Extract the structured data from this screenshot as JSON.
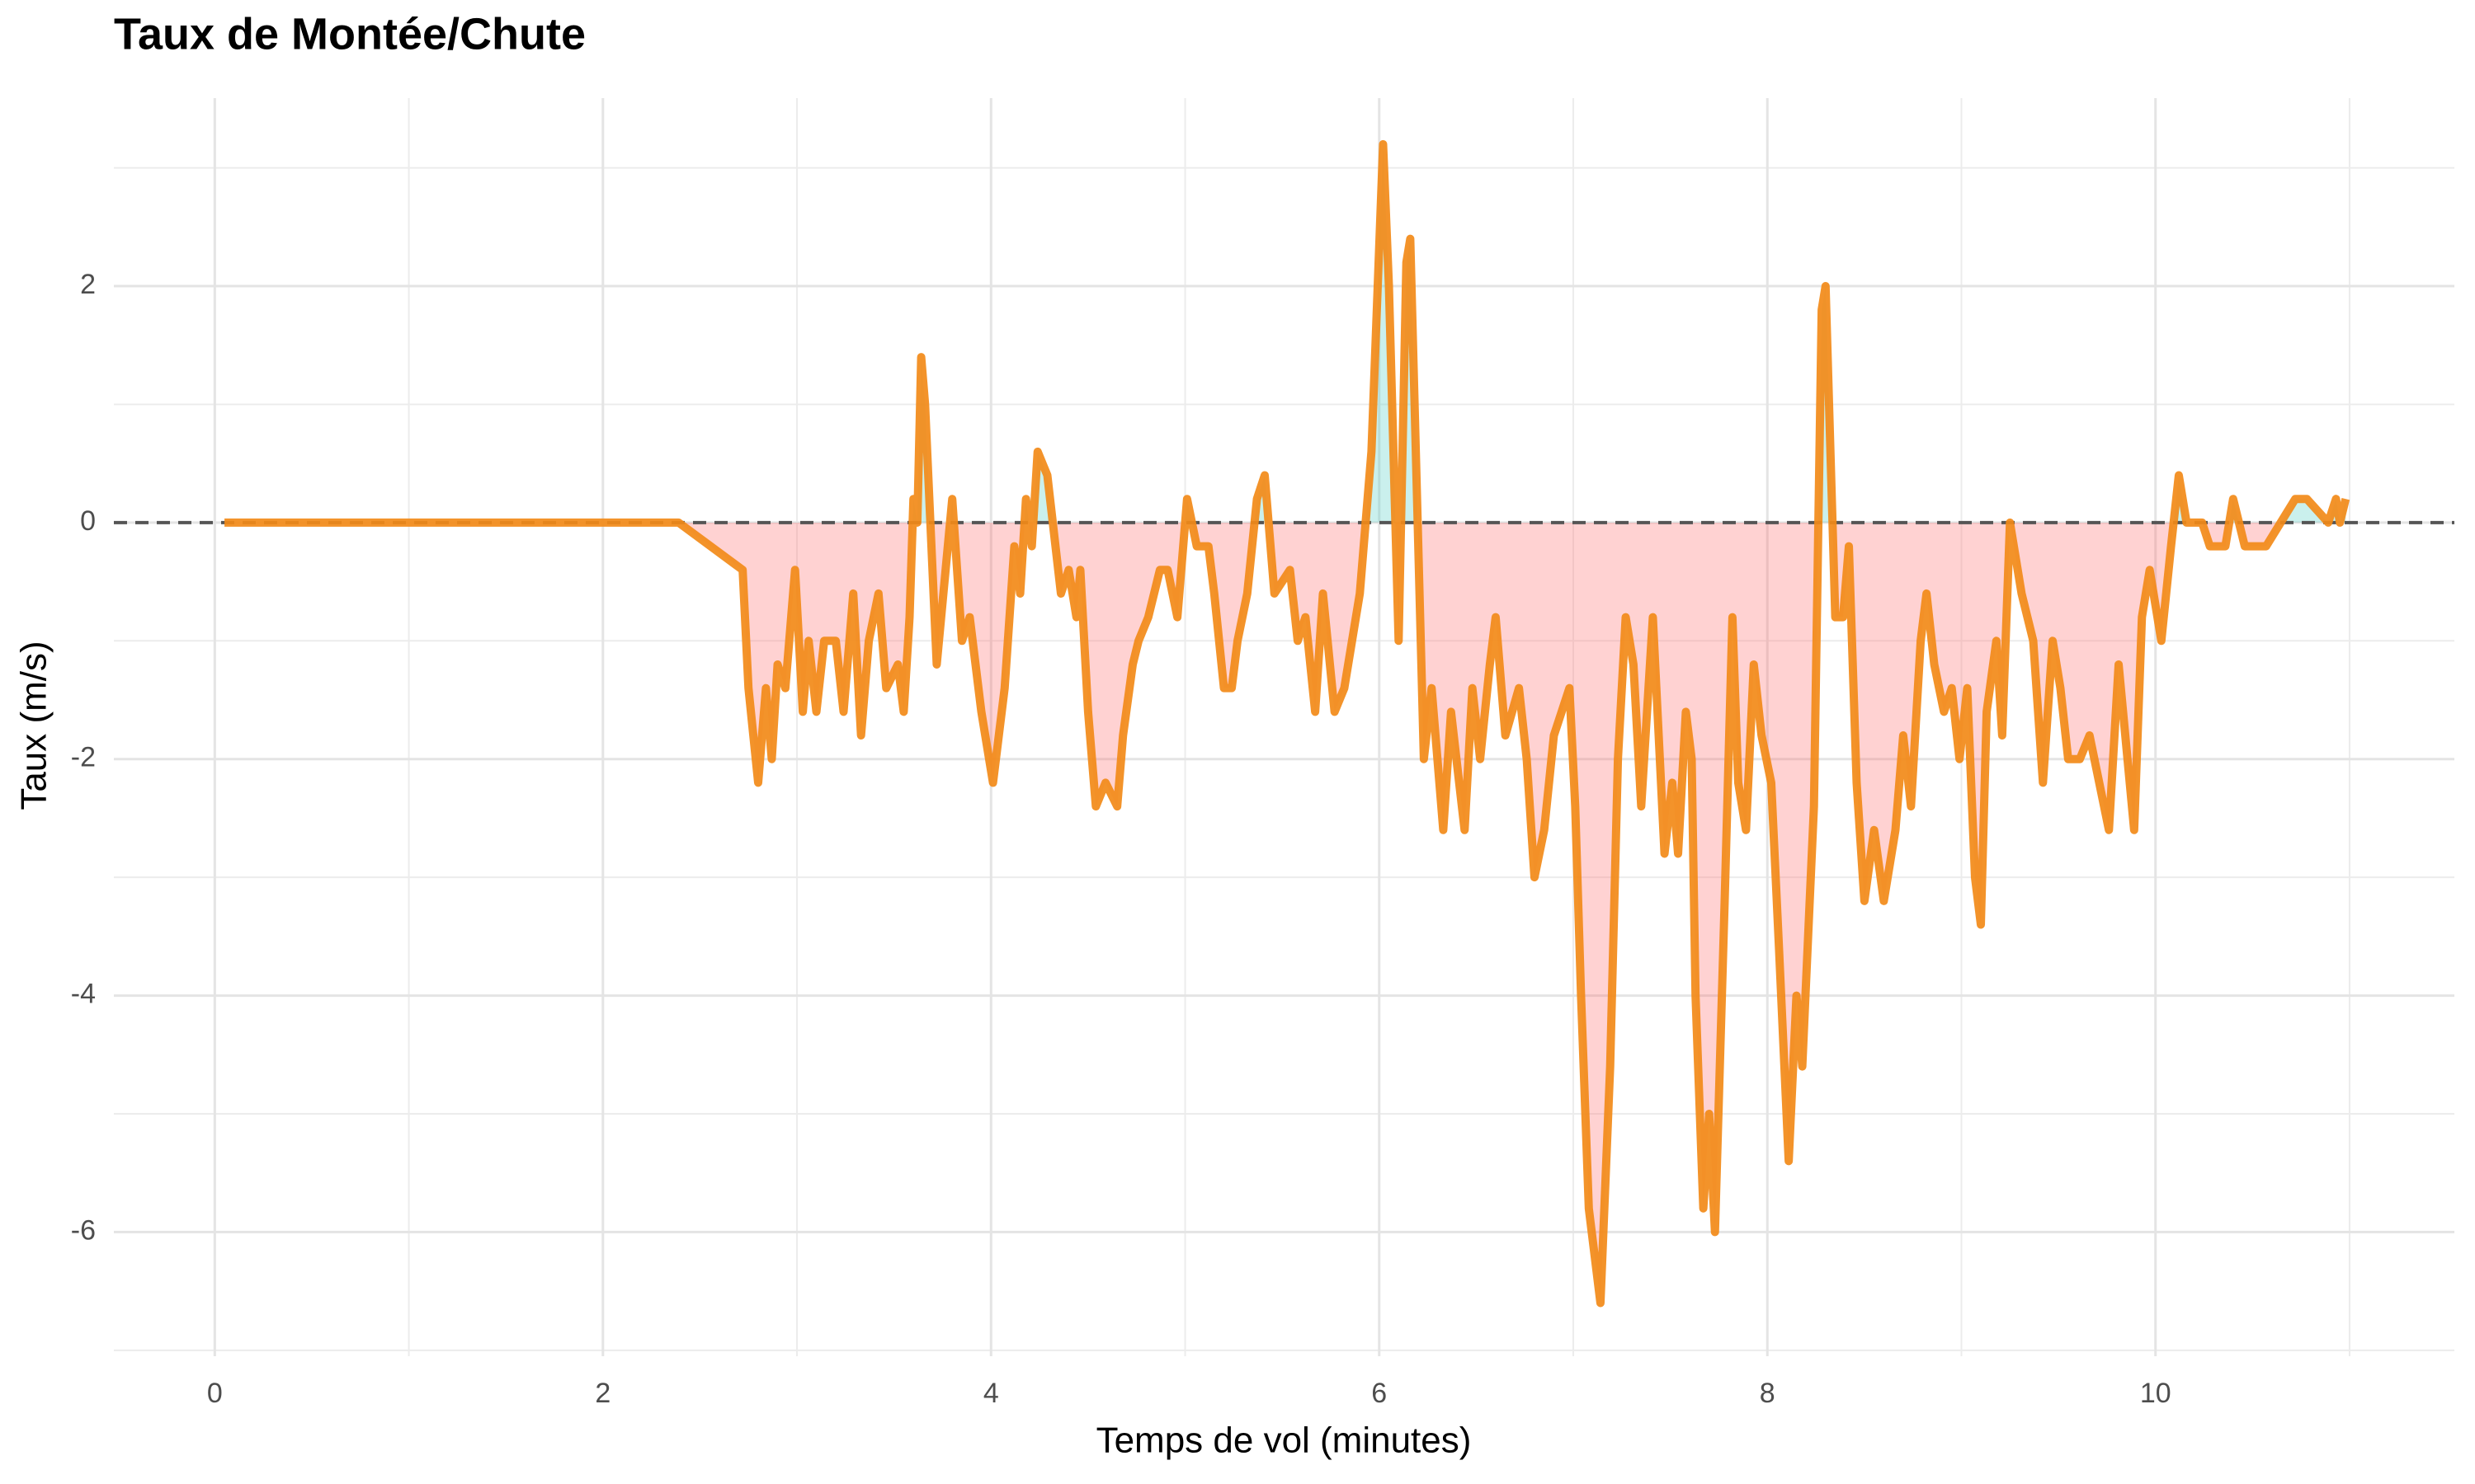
{
  "chart_data": {
    "type": "line",
    "title": "Taux de Montée/Chute",
    "x_label": "Temps de vol (minutes)",
    "y_label": "Taux (m/s)",
    "x": [
      0.05,
      2.39,
      2.72,
      2.75,
      2.8,
      2.84,
      2.87,
      2.9,
      2.94,
      2.99,
      3.03,
      3.06,
      3.1,
      3.14,
      3.2,
      3.24,
      3.29,
      3.33,
      3.37,
      3.42,
      3.46,
      3.52,
      3.55,
      3.58,
      3.6,
      3.62,
      3.64,
      3.66,
      3.72,
      3.8,
      3.85,
      3.89,
      3.95,
      4.01,
      4.07,
      4.12,
      4.15,
      4.18,
      4.21,
      4.24,
      4.29,
      4.36,
      4.4,
      4.44,
      4.46,
      4.5,
      4.54,
      4.59,
      4.65,
      4.68,
      4.73,
      4.76,
      4.81,
      4.87,
      4.91,
      4.96,
      5.01,
      5.06,
      5.12,
      5.15,
      5.2,
      5.24,
      5.27,
      5.32,
      5.37,
      5.41,
      5.46,
      5.54,
      5.58,
      5.62,
      5.67,
      5.71,
      5.77,
      5.82,
      5.9,
      5.96,
      6.02,
      6.05,
      6.1,
      6.14,
      6.16,
      6.23,
      6.27,
      6.33,
      6.37,
      6.44,
      6.48,
      6.52,
      6.57,
      6.6,
      6.65,
      6.72,
      6.76,
      6.8,
      6.85,
      6.9,
      6.98,
      7.01,
      7.04,
      7.08,
      7.14,
      7.19,
      7.23,
      7.27,
      7.31,
      7.35,
      7.38,
      7.41,
      7.47,
      7.51,
      7.54,
      7.58,
      7.61,
      7.63,
      7.67,
      7.7,
      7.73,
      7.78,
      7.82,
      7.85,
      7.89,
      7.93,
      7.97,
      8.02,
      8.06,
      8.11,
      8.15,
      8.18,
      8.24,
      8.28,
      8.3,
      8.35,
      8.39,
      8.42,
      8.46,
      8.5,
      8.55,
      8.6,
      8.66,
      8.7,
      8.74,
      8.79,
      8.82,
      8.86,
      8.91,
      8.95,
      8.99,
      9.03,
      9.07,
      9.1,
      9.13,
      9.18,
      9.21,
      9.25,
      9.31,
      9.37,
      9.42,
      9.47,
      9.51,
      9.55,
      9.61,
      9.66,
      9.71,
      9.76,
      9.81,
      9.89,
      9.93,
      9.97,
      10.03,
      10.08,
      10.12,
      10.16,
      10.24,
      10.28,
      10.36,
      10.4,
      10.46,
      10.57,
      10.72,
      10.78,
      10.89,
      10.93,
      10.95,
      10.98
    ],
    "values": [
      0,
      0,
      -0.4,
      -1.4,
      -2.2,
      -1.4,
      -2.0,
      -1.2,
      -1.4,
      -0.4,
      -1.6,
      -1.0,
      -1.6,
      -1.0,
      -1.0,
      -1.6,
      -0.6,
      -1.8,
      -1.0,
      -0.6,
      -1.4,
      -1.2,
      -1.6,
      -0.8,
      0.2,
      0.0,
      1.4,
      1.0,
      -1.2,
      0.2,
      -1.0,
      -0.8,
      -1.6,
      -2.2,
      -1.4,
      -0.2,
      -0.6,
      0.2,
      -0.2,
      0.6,
      0.4,
      -0.6,
      -0.4,
      -0.8,
      -0.4,
      -1.6,
      -2.4,
      -2.2,
      -2.4,
      -1.8,
      -1.2,
      -1.0,
      -0.8,
      -0.4,
      -0.4,
      -0.8,
      0.2,
      -0.2,
      -0.2,
      -0.6,
      -1.4,
      -1.4,
      -1.0,
      -0.6,
      0.2,
      0.4,
      -0.6,
      -0.4,
      -1.0,
      -0.8,
      -1.6,
      -0.6,
      -1.6,
      -1.4,
      -0.6,
      0.6,
      3.2,
      2.0,
      -1.0,
      2.2,
      2.4,
      -2.0,
      -1.4,
      -2.6,
      -1.6,
      -2.6,
      -1.4,
      -2.0,
      -1.2,
      -0.8,
      -1.8,
      -1.4,
      -2.0,
      -3.0,
      -2.6,
      -1.8,
      -1.4,
      -2.4,
      -4.0,
      -5.8,
      -6.6,
      -4.6,
      -2.0,
      -0.8,
      -1.2,
      -2.4,
      -1.6,
      -0.8,
      -2.8,
      -2.2,
      -2.8,
      -1.6,
      -2.0,
      -4.0,
      -5.8,
      -5.0,
      -6.0,
      -3.2,
      -0.8,
      -2.2,
      -2.6,
      -1.2,
      -1.8,
      -2.2,
      -3.6,
      -5.4,
      -4.0,
      -4.6,
      -2.4,
      1.8,
      2.0,
      -0.8,
      -0.8,
      -0.2,
      -2.2,
      -3.2,
      -2.6,
      -3.2,
      -2.6,
      -1.8,
      -2.4,
      -1.0,
      -0.6,
      -1.2,
      -1.6,
      -1.4,
      -2.0,
      -1.4,
      -3.0,
      -3.4,
      -1.6,
      -1.0,
      -1.8,
      0.0,
      -0.6,
      -1.0,
      -2.2,
      -1.0,
      -1.4,
      -2.0,
      -2.0,
      -1.8,
      -2.2,
      -2.6,
      -1.2,
      -2.6,
      -0.8,
      -0.4,
      -1.0,
      -0.2,
      0.4,
      0.0,
      0.0,
      -0.2,
      -0.2,
      0.2,
      -0.2,
      -0.2,
      0.2,
      0.2,
      0.0,
      0.2,
      0.0,
      0.2
    ],
    "color": "#f28a18",
    "fill_above_color": "#4ecdc4",
    "fill_below_color": "#ff6b6b",
    "hline": 0,
    "xlim": [
      -0.52,
      11.54
    ],
    "ylim": [
      -7.05,
      3.59
    ],
    "xticks": [
      0,
      2,
      4,
      6,
      8,
      10
    ],
    "yticks": [
      -6,
      -4,
      -2,
      0,
      2
    ],
    "x_minor_ticks": [
      1,
      3,
      5,
      7,
      9,
      11
    ],
    "y_minor_ticks": [
      -7,
      -5,
      -3,
      -1,
      1,
      3
    ],
    "grid": true
  }
}
